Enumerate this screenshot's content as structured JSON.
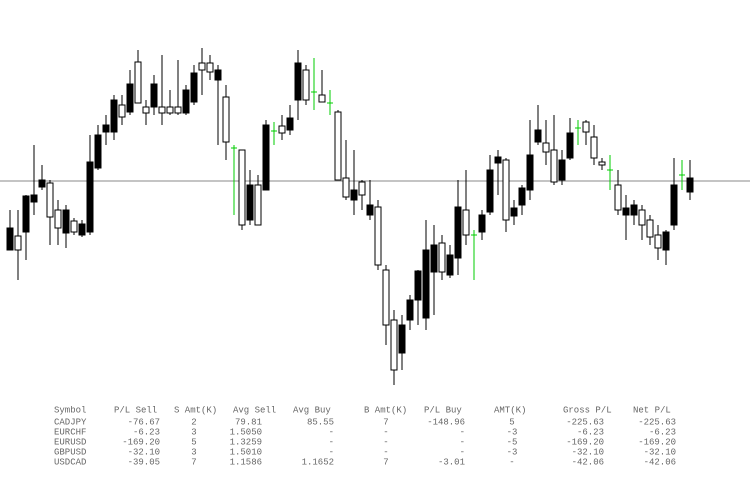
{
  "table": {
    "header": [
      "Symbol",
      "P/L Sell",
      "S Amt(K)",
      "Avg Sell",
      "Avg Buy",
      "B Amt(K)",
      "P/L Buy",
      "AMT(K)",
      "Gross P/L",
      "Net P/L"
    ],
    "rows": [
      [
        "CADJPY",
        "-76.67",
        "2",
        "79.81",
        "85.55",
        "7",
        "-148.96",
        "5",
        "-225.63",
        "-225.63"
      ],
      [
        "EURCHF",
        "-6.23",
        "3",
        "1.5050",
        "-",
        "-",
        "-",
        "-3",
        "-6.23",
        "-6.23"
      ],
      [
        "EURUSD",
        "-169.20",
        "5",
        "1.3259",
        "-",
        "-",
        "-",
        "-5",
        "-169.20",
        "-169.20"
      ],
      [
        "GBPUSD",
        "-32.10",
        "3",
        "1.5010",
        "-",
        "-",
        "-",
        "-3",
        "-32.10",
        "-32.10"
      ],
      [
        "USDCAD",
        "-39.05",
        "7",
        "1.1586",
        "1.1652",
        "7",
        "-3.01",
        "-",
        "-42.06",
        "-42.06"
      ]
    ]
  }
}
